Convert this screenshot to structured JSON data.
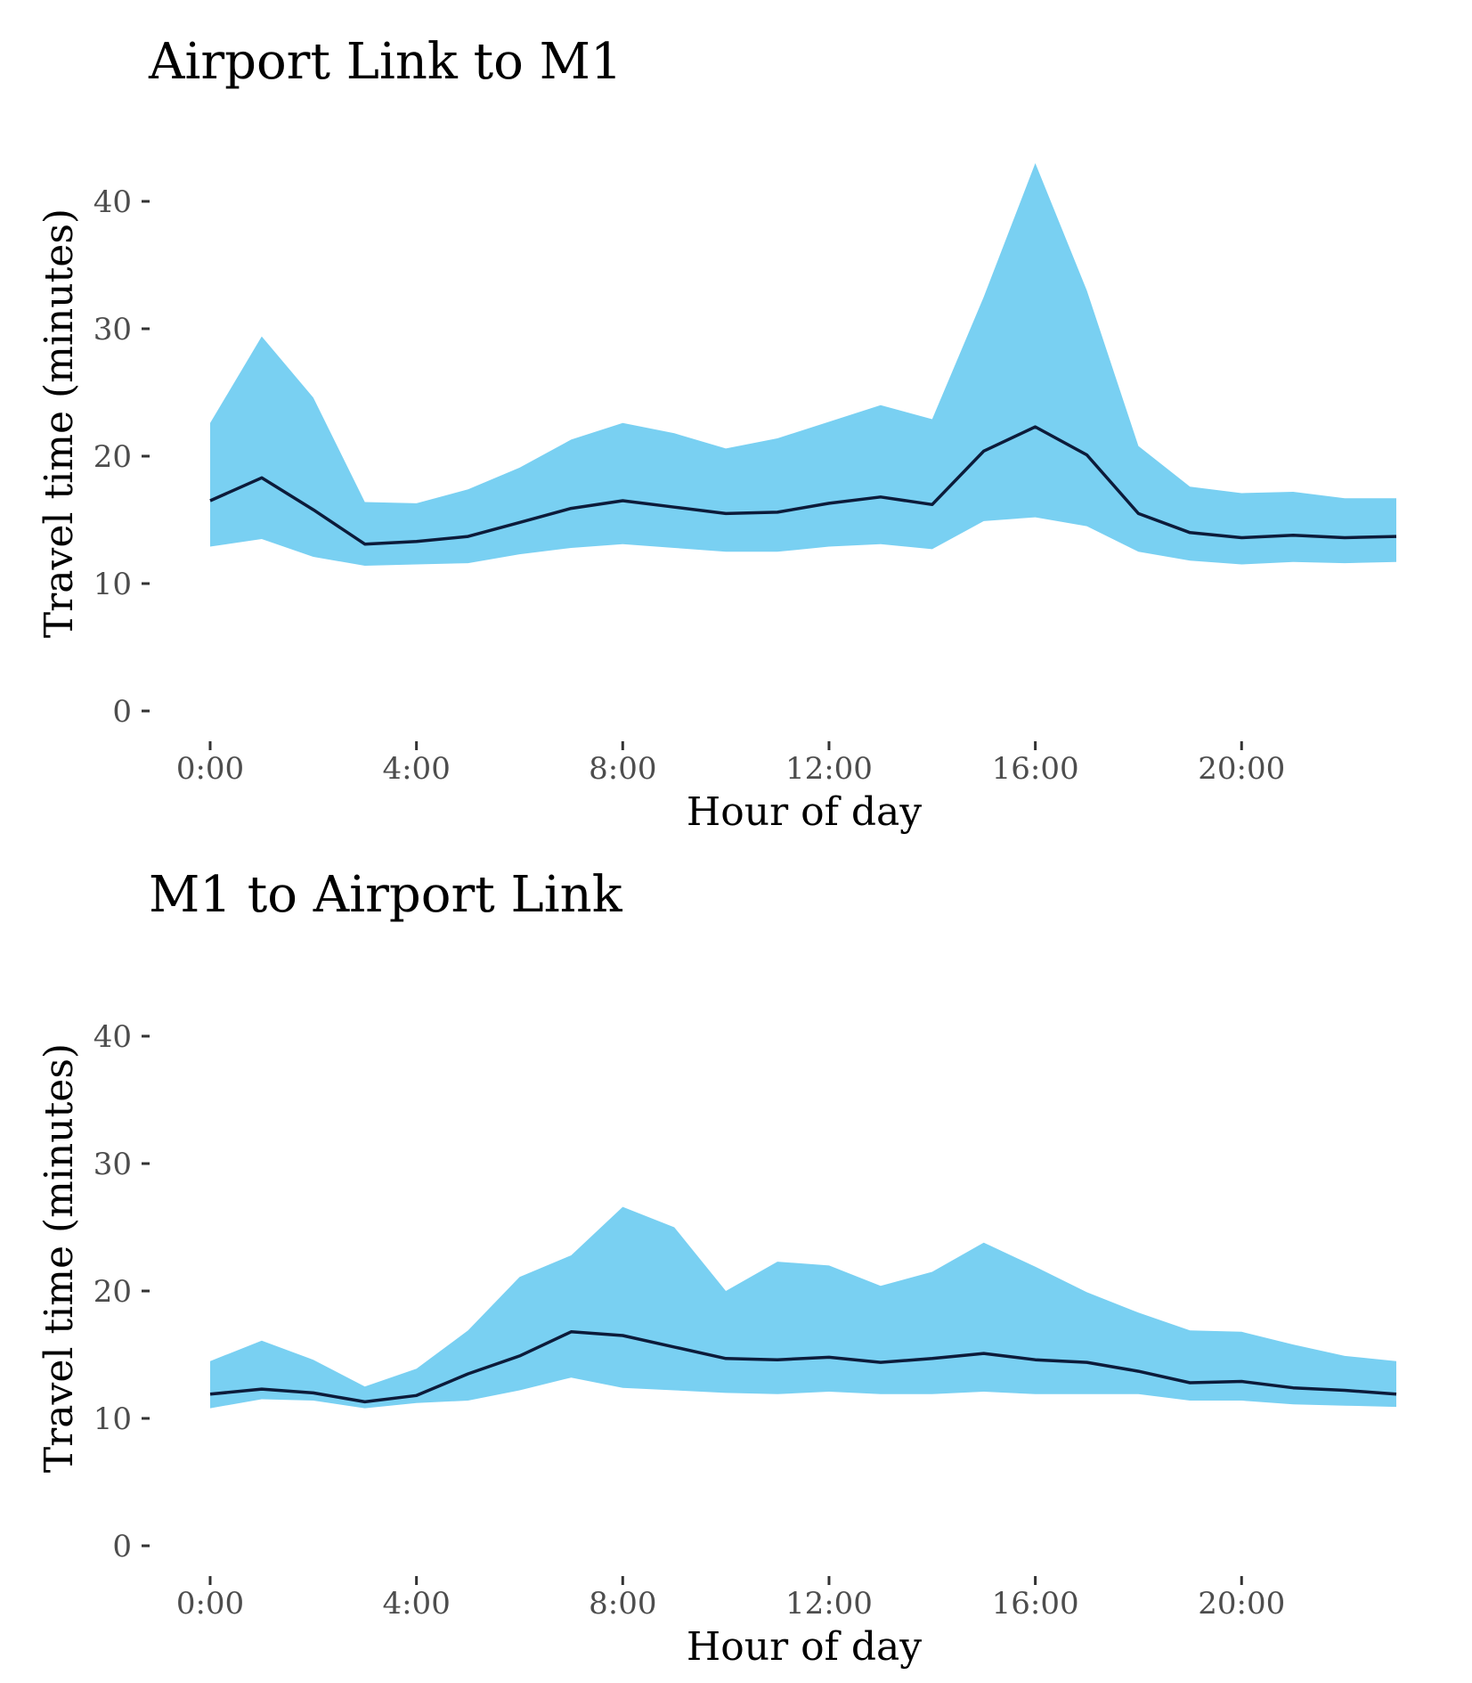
{
  "chart_data": [
    {
      "type": "area",
      "title": "Airport Link to M1",
      "xlabel": "Hour of day",
      "ylabel": "Travel time (minutes)",
      "x": [
        0,
        1,
        2,
        3,
        4,
        5,
        6,
        7,
        8,
        9,
        10,
        11,
        12,
        13,
        14,
        15,
        16,
        17,
        18,
        19,
        20,
        21,
        22,
        23
      ],
      "x_ticks": [
        0,
        4,
        8,
        12,
        16,
        20
      ],
      "x_tick_labels": [
        "0:00",
        "4:00",
        "8:00",
        "12:00",
        "16:00",
        "20:00"
      ],
      "y_ticks": [
        0,
        10,
        20,
        30,
        40
      ],
      "y_tick_labels": [
        "0",
        "10",
        "20",
        "30",
        "40"
      ],
      "xlim": [
        -0.4,
        23.4
      ],
      "ylim": [
        0,
        46
      ],
      "grid": false,
      "series": [
        {
          "kind": "range",
          "lower": [
            12.9,
            13.5,
            12.1,
            11.4,
            11.5,
            11.6,
            12.3,
            12.8,
            13.1,
            12.8,
            12.5,
            12.5,
            12.9,
            13.1,
            12.7,
            14.9,
            15.2,
            14.5,
            12.5,
            11.8,
            11.5,
            11.7,
            11.6,
            11.7
          ],
          "upper": [
            22.6,
            29.4,
            24.6,
            16.4,
            16.3,
            17.4,
            19.1,
            21.3,
            22.6,
            21.8,
            20.6,
            21.4,
            22.7,
            24.0,
            22.9,
            32.5,
            43.0,
            33.0,
            20.8,
            17.6,
            17.1,
            17.2,
            16.7,
            16.7
          ]
        },
        {
          "kind": "line",
          "values": [
            16.5,
            18.3,
            15.8,
            13.1,
            13.3,
            13.7,
            14.8,
            15.9,
            16.5,
            16.0,
            15.5,
            15.6,
            16.3,
            16.8,
            16.2,
            20.4,
            22.3,
            20.1,
            15.5,
            14.0,
            13.6,
            13.8,
            13.6,
            13.7
          ]
        }
      ],
      "colors": {
        "band": "#79d0f2",
        "line": "#0c1b3a"
      }
    },
    {
      "type": "area",
      "title": "M1 to Airport Link",
      "xlabel": "Hour of day",
      "ylabel": "Travel time (minutes)",
      "x": [
        0,
        1,
        2,
        3,
        4,
        5,
        6,
        7,
        8,
        9,
        10,
        11,
        12,
        13,
        14,
        15,
        16,
        17,
        18,
        19,
        20,
        21,
        22,
        23
      ],
      "x_ticks": [
        0,
        4,
        8,
        12,
        16,
        20
      ],
      "x_tick_labels": [
        "0:00",
        "4:00",
        "8:00",
        "12:00",
        "16:00",
        "20:00"
      ],
      "y_ticks": [
        0,
        10,
        20,
        30,
        40
      ],
      "y_tick_labels": [
        "0",
        "10",
        "20",
        "30",
        "40"
      ],
      "xlim": [
        -0.4,
        23.4
      ],
      "ylim": [
        0,
        46
      ],
      "grid": false,
      "series": [
        {
          "kind": "range",
          "lower": [
            10.8,
            11.5,
            11.4,
            10.8,
            11.2,
            11.4,
            12.2,
            13.2,
            12.4,
            12.2,
            12.0,
            11.9,
            12.1,
            11.9,
            11.9,
            12.1,
            11.9,
            11.9,
            11.9,
            11.4,
            11.4,
            11.1,
            11.0,
            10.9
          ],
          "upper": [
            14.5,
            16.1,
            14.6,
            12.5,
            13.9,
            16.9,
            21.1,
            22.8,
            26.6,
            25.0,
            20.0,
            22.3,
            22.0,
            20.4,
            21.5,
            23.8,
            21.9,
            19.9,
            18.3,
            16.9,
            16.8,
            15.8,
            14.9,
            14.5
          ]
        },
        {
          "kind": "line",
          "values": [
            11.9,
            12.3,
            12.0,
            11.3,
            11.8,
            13.5,
            14.9,
            16.8,
            16.5,
            15.6,
            14.7,
            14.6,
            14.8,
            14.4,
            14.7,
            15.1,
            14.6,
            14.4,
            13.7,
            12.8,
            12.9,
            12.4,
            12.2,
            11.9
          ]
        }
      ],
      "colors": {
        "band": "#79d0f2",
        "line": "#0c1b3a"
      }
    }
  ]
}
